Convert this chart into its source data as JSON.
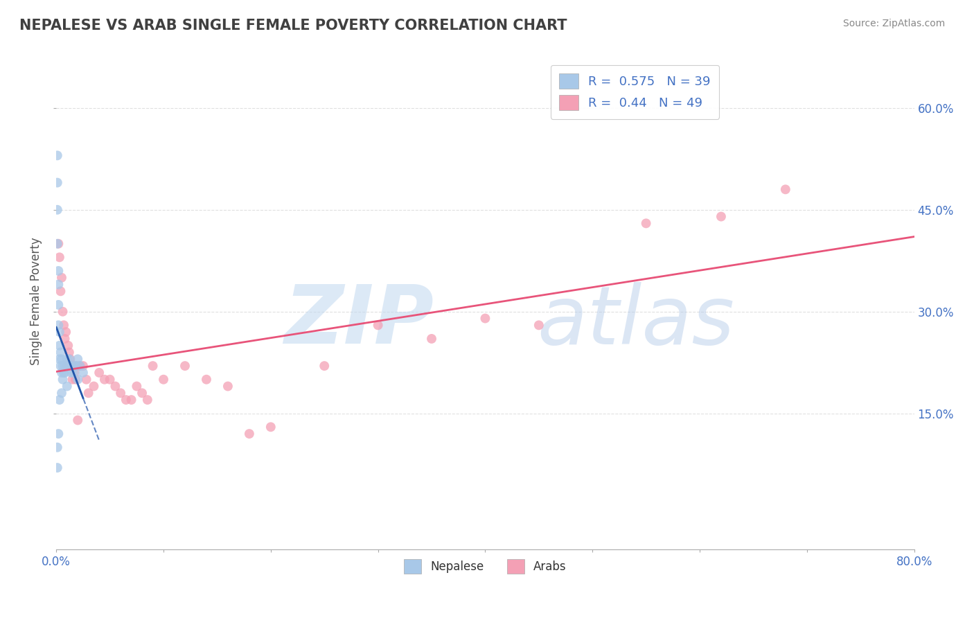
{
  "title": "NEPALESE VS ARAB SINGLE FEMALE POVERTY CORRELATION CHART",
  "source": "Source: ZipAtlas.com",
  "ylabel": "Single Female Poverty",
  "watermark_zip": "ZIP",
  "watermark_atlas": "atlas",
  "nepalese": {
    "R": 0.575,
    "N": 39,
    "color": "#A8C8E8",
    "line_color": "#2255AA",
    "x": [
      0.001,
      0.001,
      0.001,
      0.001,
      0.002,
      0.002,
      0.002,
      0.002,
      0.003,
      0.003,
      0.003,
      0.004,
      0.004,
      0.005,
      0.005,
      0.006,
      0.006,
      0.007,
      0.008,
      0.008,
      0.009,
      0.01,
      0.011,
      0.012,
      0.013,
      0.014,
      0.015,
      0.016,
      0.018,
      0.02,
      0.022,
      0.025,
      0.02,
      0.01,
      0.005,
      0.003,
      0.002,
      0.001,
      0.001
    ],
    "y": [
      0.53,
      0.49,
      0.45,
      0.4,
      0.36,
      0.34,
      0.31,
      0.28,
      0.27,
      0.25,
      0.23,
      0.24,
      0.22,
      0.23,
      0.21,
      0.22,
      0.2,
      0.21,
      0.22,
      0.21,
      0.22,
      0.23,
      0.22,
      0.23,
      0.22,
      0.21,
      0.22,
      0.21,
      0.22,
      0.23,
      0.22,
      0.21,
      0.2,
      0.19,
      0.18,
      0.17,
      0.12,
      0.1,
      0.07
    ]
  },
  "arabs": {
    "R": 0.44,
    "N": 49,
    "color": "#F4A0B5",
    "line_color": "#E8547A",
    "x": [
      0.002,
      0.003,
      0.004,
      0.005,
      0.006,
      0.007,
      0.008,
      0.009,
      0.01,
      0.011,
      0.012,
      0.013,
      0.014,
      0.015,
      0.016,
      0.017,
      0.018,
      0.019,
      0.02,
      0.022,
      0.025,
      0.028,
      0.03,
      0.035,
      0.04,
      0.045,
      0.05,
      0.055,
      0.06,
      0.065,
      0.07,
      0.075,
      0.08,
      0.085,
      0.09,
      0.1,
      0.12,
      0.14,
      0.16,
      0.18,
      0.2,
      0.25,
      0.3,
      0.35,
      0.4,
      0.45,
      0.55,
      0.62,
      0.68
    ],
    "y": [
      0.4,
      0.38,
      0.33,
      0.35,
      0.3,
      0.28,
      0.26,
      0.27,
      0.22,
      0.25,
      0.24,
      0.23,
      0.22,
      0.2,
      0.22,
      0.21,
      0.2,
      0.22,
      0.14,
      0.22,
      0.22,
      0.2,
      0.18,
      0.19,
      0.21,
      0.2,
      0.2,
      0.19,
      0.18,
      0.17,
      0.17,
      0.19,
      0.18,
      0.17,
      0.22,
      0.2,
      0.22,
      0.2,
      0.19,
      0.12,
      0.13,
      0.22,
      0.28,
      0.26,
      0.29,
      0.28,
      0.43,
      0.44,
      0.48
    ]
  },
  "xlim": [
    0.0,
    0.8
  ],
  "ylim": [
    -0.05,
    0.68
  ],
  "xticks": [
    0.0,
    0.1,
    0.2,
    0.3,
    0.4,
    0.5,
    0.6,
    0.7,
    0.8
  ],
  "xtick_labels_show": [
    "0.0%",
    "",
    "",
    "",
    "",
    "",
    "",
    "",
    "80.0%"
  ],
  "ytick_positions": [
    0.15,
    0.3,
    0.45,
    0.6
  ],
  "ytick_labels_right": [
    "15.0%",
    "30.0%",
    "45.0%",
    "60.0%"
  ],
  "grid_color": "#DDDDDD",
  "bg_color": "#FFFFFF",
  "title_color": "#404040",
  "axis_label_color": "#4472C4",
  "marker_size": 10,
  "trend_linewidth": 2.0
}
